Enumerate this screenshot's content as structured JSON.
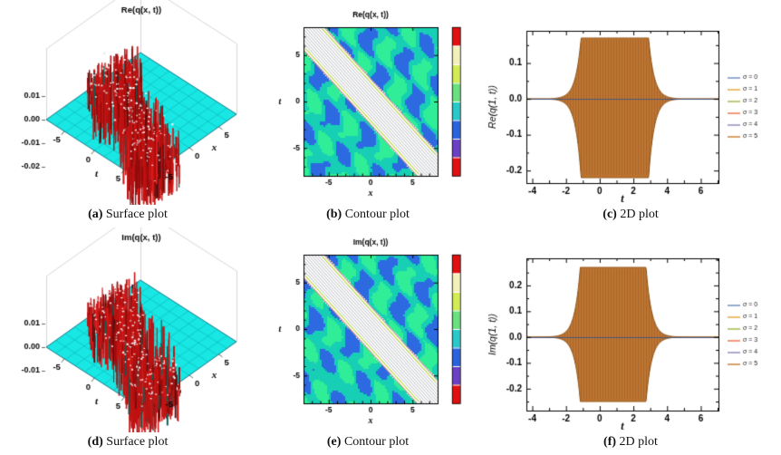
{
  "figure": {
    "panels": [
      {
        "caption_label": "(a)",
        "caption_text": "Surface plot"
      },
      {
        "caption_label": "(b)",
        "caption_text": "Contour plot"
      },
      {
        "caption_label": "(c)",
        "caption_text": "2D plot"
      },
      {
        "caption_label": "(d)",
        "caption_text": "Surface plot"
      },
      {
        "caption_label": "(e)",
        "caption_text": "Contour plot"
      },
      {
        "caption_label": "(f)",
        "caption_text": "2D plot"
      }
    ]
  },
  "chart_data": [
    {
      "id": "a",
      "type": "surface3d",
      "title": "Re(q(x, t))",
      "x_axis": {
        "label": "t",
        "ticks": [
          -5,
          0,
          5
        ],
        "range": [
          -8,
          8
        ]
      },
      "y_axis": {
        "label": "x",
        "ticks": [
          5,
          0,
          -5
        ],
        "range": [
          -8,
          8
        ]
      },
      "z_axis": {
        "ticks": [
          "0.01",
          "0.00",
          "-0.01",
          "-0.02"
        ],
        "range": [
          -0.02,
          0.01
        ]
      },
      "description": "Flat cyan plane at z = 0 with a dense red oscillatory soliton ridge running diagonally across the (x, t) plane, white speckled mesh highlights",
      "plane_color": "#18e7e3",
      "grid_color": "rgba(0,130,150,0.5)",
      "ridge_colors": [
        "#c01212",
        "#8e0d0d",
        "#dd1c1c",
        "#55100f"
      ],
      "speckle_color": "#ffffff",
      "seed": 7
    },
    {
      "id": "b",
      "type": "contour",
      "title": "Re(q(x, t))",
      "xlabel": "x",
      "ylabel": "t",
      "x_ticks": [
        -5,
        0,
        5
      ],
      "y_ticks": [
        -5,
        0,
        5
      ],
      "range": [
        -8,
        8
      ],
      "band_half_width": 2.5,
      "description": "White finely-striped band along x + t = 0 (soliton trajectory) over a blue/green oscillatory contour mosaic; red and yellow-green contour lines edge the band",
      "palette": {
        "green": "#30ee97",
        "blue": "#2d6ae2",
        "teal": "#16cfb4",
        "band": "#ffffff"
      },
      "band_edge_colors": [
        "#e23220",
        "#b9e300"
      ],
      "colorbar": [
        "#e01111",
        "#f3f0bb",
        "#d3ec55",
        "#6ae07f",
        "#2ac9c9",
        "#2a63dd",
        "#6a40c4",
        "#e01111"
      ],
      "seed": 11
    },
    {
      "id": "c",
      "type": "envelope2d",
      "title": "",
      "ylabel": "Re(q(1, t))",
      "xlabel": "t",
      "x_ticks": [
        -4,
        -2,
        0,
        2,
        4,
        6
      ],
      "y_ticks": [
        "0.1",
        "0.0",
        "-0.1",
        "-0.2"
      ],
      "x_range": [
        -4.35,
        7.05
      ],
      "y_range": [
        -0.235,
        0.19
      ],
      "envelope": {
        "t1": -1.1,
        "t2": 2.9,
        "kL": 3.0,
        "kR": 3.0,
        "top": 0.17,
        "bottom": 0.22
      },
      "description": "Rapidly oscillating Re(q(1, t)); envelope flares up near t = -1, saturates at about +0.17 / -0.22 until t = 2.9, then collapses; curves for all sigma values overlap (brown on top)",
      "fill_color": "#bd7531",
      "edge_color": "#8a5014",
      "zero_line_color": "#49577f",
      "legend": [
        {
          "label": "σ = 0",
          "color": "#5e81b5"
        },
        {
          "label": "σ = 1",
          "color": "#e19c24"
        },
        {
          "label": "σ = 2",
          "color": "#8fb032"
        },
        {
          "label": "σ = 3",
          "color": "#eb6235"
        },
        {
          "label": "σ = 4",
          "color": "#8778b3"
        },
        {
          "label": "σ = 5",
          "color": "#c56e1a"
        }
      ]
    },
    {
      "id": "d",
      "type": "surface3d",
      "title": "Im(q(x, t))",
      "x_axis": {
        "label": "t",
        "ticks": [
          -5,
          0,
          5
        ],
        "range": [
          -8,
          8
        ]
      },
      "y_axis": {
        "label": "x",
        "ticks": [
          5,
          0,
          -5
        ],
        "range": [
          -8,
          8
        ]
      },
      "z_axis": {
        "ticks": [
          "0.01",
          "0.00",
          "-0.01"
        ],
        "range": [
          -0.01,
          0.01
        ]
      },
      "description": "Flat cyan plane at z = 0 with a dense red oscillatory soliton ridge running diagonally across the (x, t) plane, white speckled mesh highlights",
      "plane_color": "#18e7e3",
      "grid_color": "rgba(0,130,150,0.5)",
      "ridge_colors": [
        "#c01212",
        "#8e0d0d",
        "#dd1c1c",
        "#55100f"
      ],
      "speckle_color": "#ffffff",
      "seed": 19
    },
    {
      "id": "e",
      "type": "contour",
      "title": "Im(q(x, t))",
      "xlabel": "x",
      "ylabel": "t",
      "x_ticks": [
        -5,
        0,
        5
      ],
      "y_ticks": [
        -5,
        0,
        5
      ],
      "range": [
        -8,
        8
      ],
      "band_half_width": 2.5,
      "description": "White finely-striped band along x + t = 0 over a blue/green oscillatory contour mosaic; red and yellow-green contour lines edge the band",
      "palette": {
        "green": "#30ee97",
        "blue": "#2d6ae2",
        "teal": "#16cfb4",
        "band": "#ffffff"
      },
      "band_edge_colors": [
        "#e23220",
        "#b9e300"
      ],
      "colorbar": [
        "#e01111",
        "#f3f0bb",
        "#d3ec55",
        "#6ae07f",
        "#2ac9c9",
        "#2a63dd",
        "#6a40c4",
        "#e01111"
      ],
      "seed": 23
    },
    {
      "id": "f",
      "type": "envelope2d",
      "title": "",
      "ylabel": "Im(q(1, t))",
      "xlabel": "t",
      "x_ticks": [
        -4,
        -2,
        0,
        2,
        4,
        6
      ],
      "y_ticks": [
        "0.2",
        "0.1",
        "0.0",
        "-0.1",
        "-0.2"
      ],
      "x_range": [
        -4.35,
        7.05
      ],
      "y_range": [
        -0.285,
        0.305
      ],
      "envelope": {
        "t1": -1.15,
        "t2": 2.75,
        "kL": 3.0,
        "kR": 3.0,
        "top": 0.27,
        "bottom": 0.25
      },
      "description": "Rapidly oscillating Im(q(1, t)); envelope flares up near t = -1, saturates at about +0.27 / -0.25 until t = 2.75, then collapses; curves for all sigma values overlap (brown on top)",
      "fill_color": "#bd7531",
      "edge_color": "#8a5014",
      "zero_line_color": "#49577f",
      "legend": [
        {
          "label": "σ = 0",
          "color": "#5e81b5"
        },
        {
          "label": "σ = 1",
          "color": "#e19c24"
        },
        {
          "label": "σ = 2",
          "color": "#8fb032"
        },
        {
          "label": "σ = 3",
          "color": "#eb6235"
        },
        {
          "label": "σ = 4",
          "color": "#8778b3"
        },
        {
          "label": "σ = 5",
          "color": "#c56e1a"
        }
      ]
    }
  ]
}
